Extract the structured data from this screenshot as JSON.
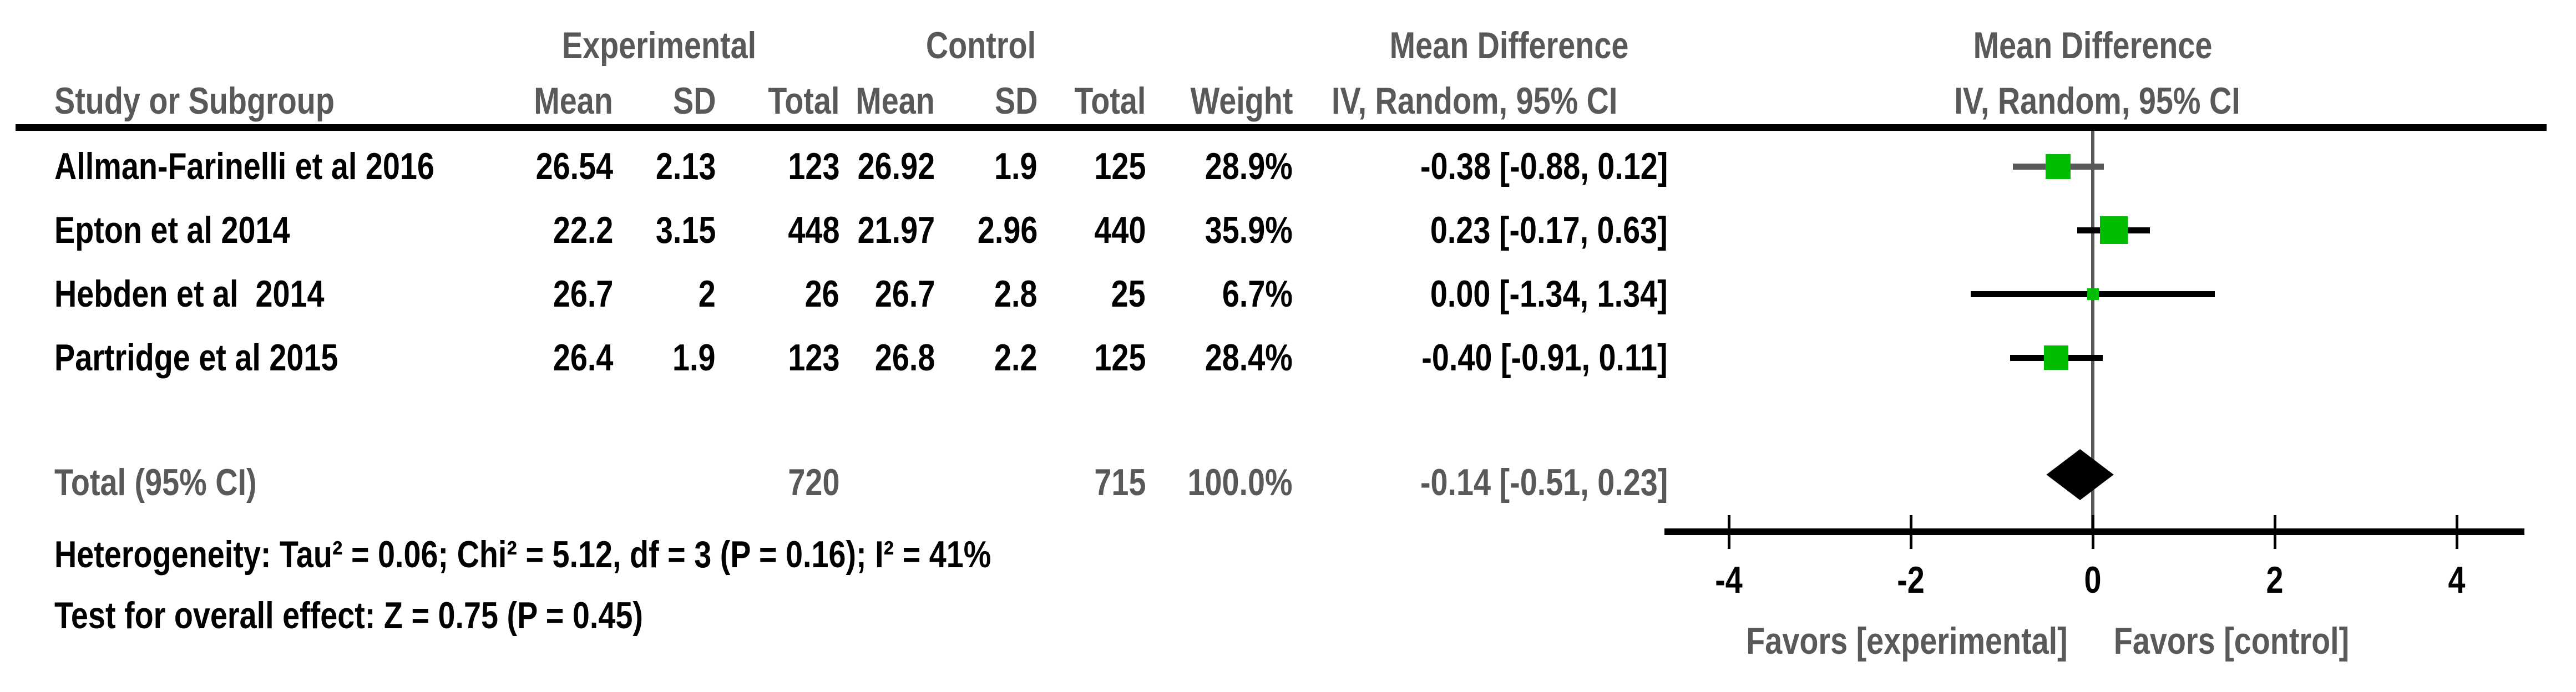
{
  "colors": {
    "text_gray": "#595959",
    "marker_green": "#00bd00",
    "line_black": "#000000"
  },
  "header": {
    "group_experimental": "Experimental",
    "group_control": "Control",
    "md_left": "Mean Difference",
    "md_right": "Mean Difference",
    "col_study": "Study or Subgroup",
    "col_mean": "Mean",
    "col_sd": "SD",
    "col_total": "Total",
    "col_mean2": "Mean",
    "col_sd2": "SD",
    "col_total2": "Total",
    "col_weight": "Weight",
    "col_ci": "IV, Random, 95% CI",
    "col_ci_right": "IV, Random, 95% CI"
  },
  "rows": [
    {
      "study": "Allman-Farinelli et al 2016",
      "mean_e": "26.54",
      "sd_e": "2.13",
      "total_e": "123",
      "mean_c": "26.92",
      "sd_c": "1.9",
      "total_c": "125",
      "weight": "28.9%",
      "ci": "-0.38 [-0.88, 0.12]"
    },
    {
      "study": "Epton et al 2014",
      "mean_e": "22.2",
      "sd_e": "3.15",
      "total_e": "448",
      "mean_c": "21.97",
      "sd_c": "2.96",
      "total_c": "440",
      "weight": "35.9%",
      "ci": "0.23 [-0.17, 0.63]"
    },
    {
      "study": "Hebden et al  2014",
      "mean_e": "26.7",
      "sd_e": "2",
      "total_e": "26",
      "mean_c": "26.7",
      "sd_c": "2.8",
      "total_c": "25",
      "weight": "6.7%",
      "ci": "0.00 [-1.34, 1.34]"
    },
    {
      "study": "Partridge et al 2015",
      "mean_e": "26.4",
      "sd_e": "1.9",
      "total_e": "123",
      "mean_c": "26.8",
      "sd_c": "2.2",
      "total_c": "125",
      "weight": "28.4%",
      "ci": "-0.40 [-0.91, 0.11]"
    }
  ],
  "total_row": {
    "label": "Total (95% CI)",
    "total_e": "720",
    "total_c": "715",
    "weight": "100.0%",
    "ci": "-0.14 [-0.51, 0.23]"
  },
  "footnotes": {
    "heterogeneity": "Heterogeneity: Tau² = 0.06; Chi² = 5.12, df = 3 (P = 0.16); I² = 41%",
    "overall_effect": "Test for overall effect: Z = 0.75 (P = 0.45)"
  },
  "plot": {
    "favors_left": "Favors [experimental]",
    "favors_right": "Favors [control]"
  },
  "chart_data": {
    "type": "forest",
    "effect_measure": "Mean Difference",
    "method": "IV, Random, 95% CI",
    "x_ticks": [
      -4,
      -2,
      0,
      2,
      4
    ],
    "x_axis_range": [
      -4.7,
      4.74
    ],
    "studies": [
      {
        "name": "Allman-Farinelli et al 2016",
        "mean_e": 26.54,
        "sd_e": 2.13,
        "n_e": 123,
        "mean_c": 26.92,
        "sd_c": 1.9,
        "n_c": 125,
        "weight_pct": 28.9,
        "md": -0.38,
        "ci_lo": -0.88,
        "ci_hi": 0.12,
        "ci_line_color": "#595959"
      },
      {
        "name": "Epton et al 2014",
        "mean_e": 22.2,
        "sd_e": 3.15,
        "n_e": 448,
        "mean_c": 21.97,
        "sd_c": 2.96,
        "n_c": 440,
        "weight_pct": 35.9,
        "md": 0.23,
        "ci_lo": -0.17,
        "ci_hi": 0.63,
        "ci_line_color": "#000000"
      },
      {
        "name": "Hebden et al  2014",
        "mean_e": 26.7,
        "sd_e": 2,
        "n_e": 26,
        "mean_c": 26.7,
        "sd_c": 2.8,
        "n_c": 25,
        "weight_pct": 6.7,
        "md": 0.0,
        "ci_lo": -1.34,
        "ci_hi": 1.34,
        "ci_line_color": "#000000"
      },
      {
        "name": "Partridge et al 2015",
        "mean_e": 26.4,
        "sd_e": 1.9,
        "n_e": 123,
        "mean_c": 26.8,
        "sd_c": 2.2,
        "n_c": 125,
        "weight_pct": 28.4,
        "md": -0.4,
        "ci_lo": -0.91,
        "ci_hi": 0.11,
        "ci_line_color": "#000000"
      }
    ],
    "total": {
      "label": "Total (95% CI)",
      "n_e": 720,
      "n_c": 715,
      "weight_pct": 100.0,
      "md": -0.14,
      "ci_lo": -0.51,
      "ci_hi": 0.23
    },
    "heterogeneity": "Heterogeneity: Tau² = 0.06; Chi² = 5.12, df = 3 (P = 0.16); I² = 41%",
    "overall_effect": "Test for overall effect: Z = 0.75 (P = 0.45)",
    "favors_left": "Favors [experimental]",
    "favors_right": "Favors [control]",
    "legend_position": "none",
    "grid": false
  }
}
